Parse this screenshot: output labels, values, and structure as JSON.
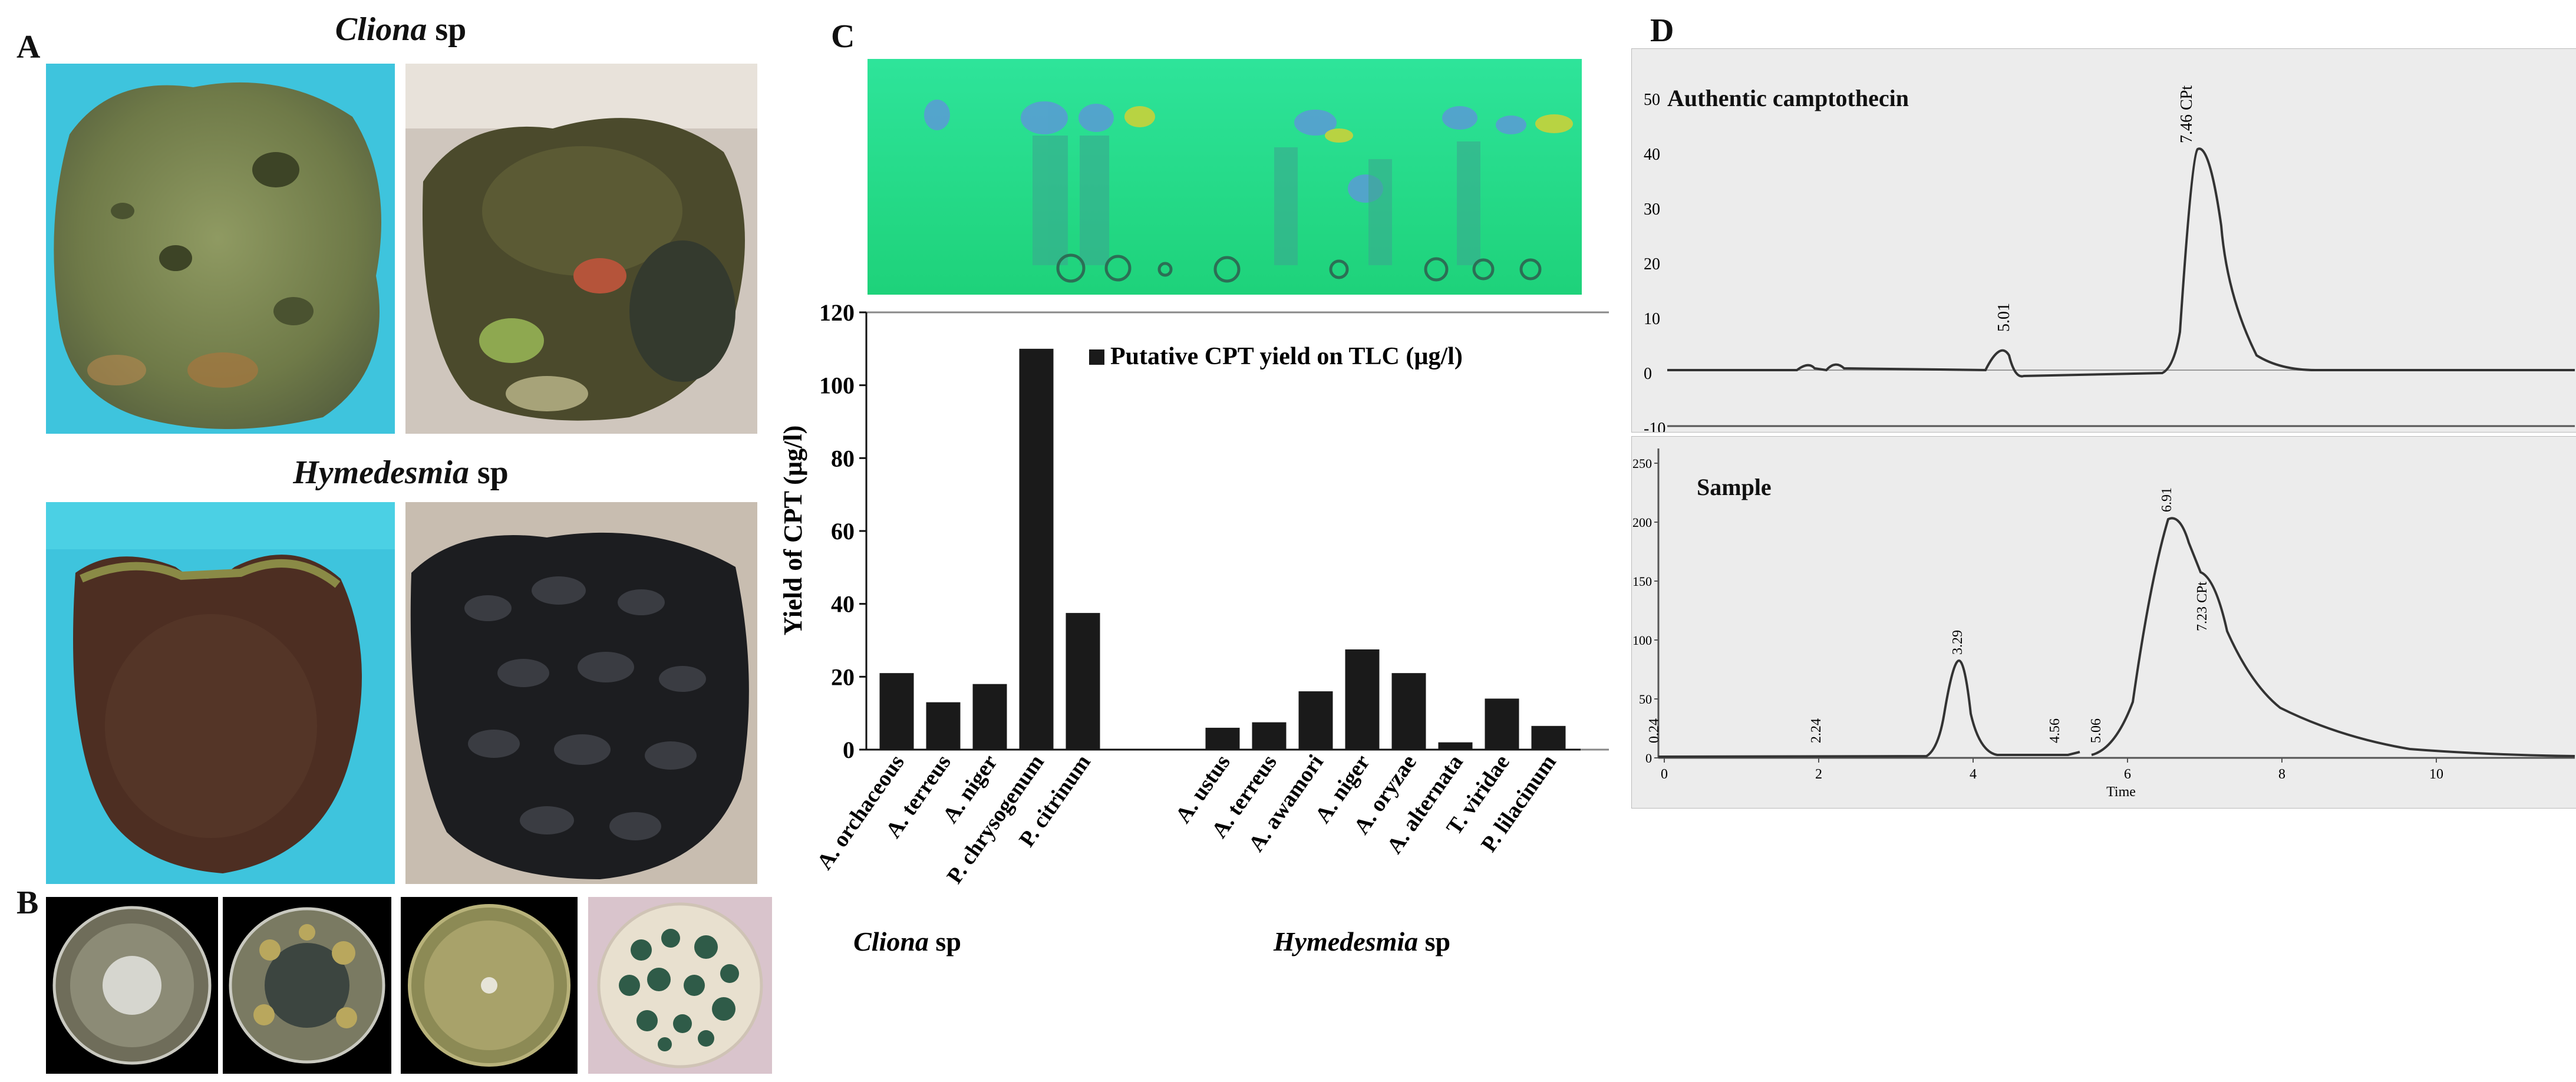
{
  "panels": {
    "a_label": "A",
    "b_label": "B",
    "c_label": "C",
    "d_label": "D"
  },
  "sponges": {
    "cliona": {
      "genus": "Cliona",
      "suffix": " sp"
    },
    "hymedesmia": {
      "genus": "Hymedesmia",
      "suffix": " sp"
    }
  },
  "colors": {
    "bar": "#1a1a1a",
    "tlc_green": "#22d87a",
    "tank_blue": "#2fb8d6",
    "hplc_bg": "#ececec"
  },
  "chart_data": {
    "type": "bar",
    "ylabel": "Yield of CPT (µg/l)",
    "ylim": [
      0,
      120
    ],
    "yticks": [
      0,
      20,
      40,
      60,
      80,
      100,
      120
    ],
    "legend": "Putative CPT yield on TLC (µg/l)",
    "legend_position": "top-right",
    "groups": [
      {
        "genus": "Cliona",
        "suffix": " sp",
        "categories": [
          "A. orchaceous",
          "A. terreus",
          "A. niger",
          "P. chrysogenum",
          "P. citrinum"
        ],
        "values": [
          21,
          13,
          18,
          110,
          37.5
        ]
      },
      {
        "genus": "Hymedesmia",
        "suffix": " sp",
        "categories": [
          "A. ustus",
          "A. terreus",
          "A. awamori",
          "A. niger",
          "A. oryzae",
          "A. alternata",
          "T. viridae",
          "P. lilacinum"
        ],
        "values": [
          6,
          7.5,
          16,
          27.5,
          21,
          2,
          14,
          6.5
        ]
      }
    ]
  },
  "hplc": {
    "authentic": {
      "title": "Authentic camptothecin",
      "yticks": [
        "50",
        "40",
        "30",
        "20",
        "10",
        "0",
        "-10"
      ],
      "peaks": [
        "5.01",
        "7.46 CPt"
      ]
    },
    "sample": {
      "title": "Sample",
      "yticks": [
        "250",
        "200",
        "150",
        "100",
        "50",
        "0"
      ],
      "xticks": [
        "0",
        "2",
        "4",
        "6",
        "8",
        "10"
      ],
      "xlabel": "Time",
      "peaks": [
        "0.24",
        "2.24",
        "3.29",
        "4.56",
        "5.06",
        "6.91",
        "7.23 CPt"
      ]
    }
  }
}
